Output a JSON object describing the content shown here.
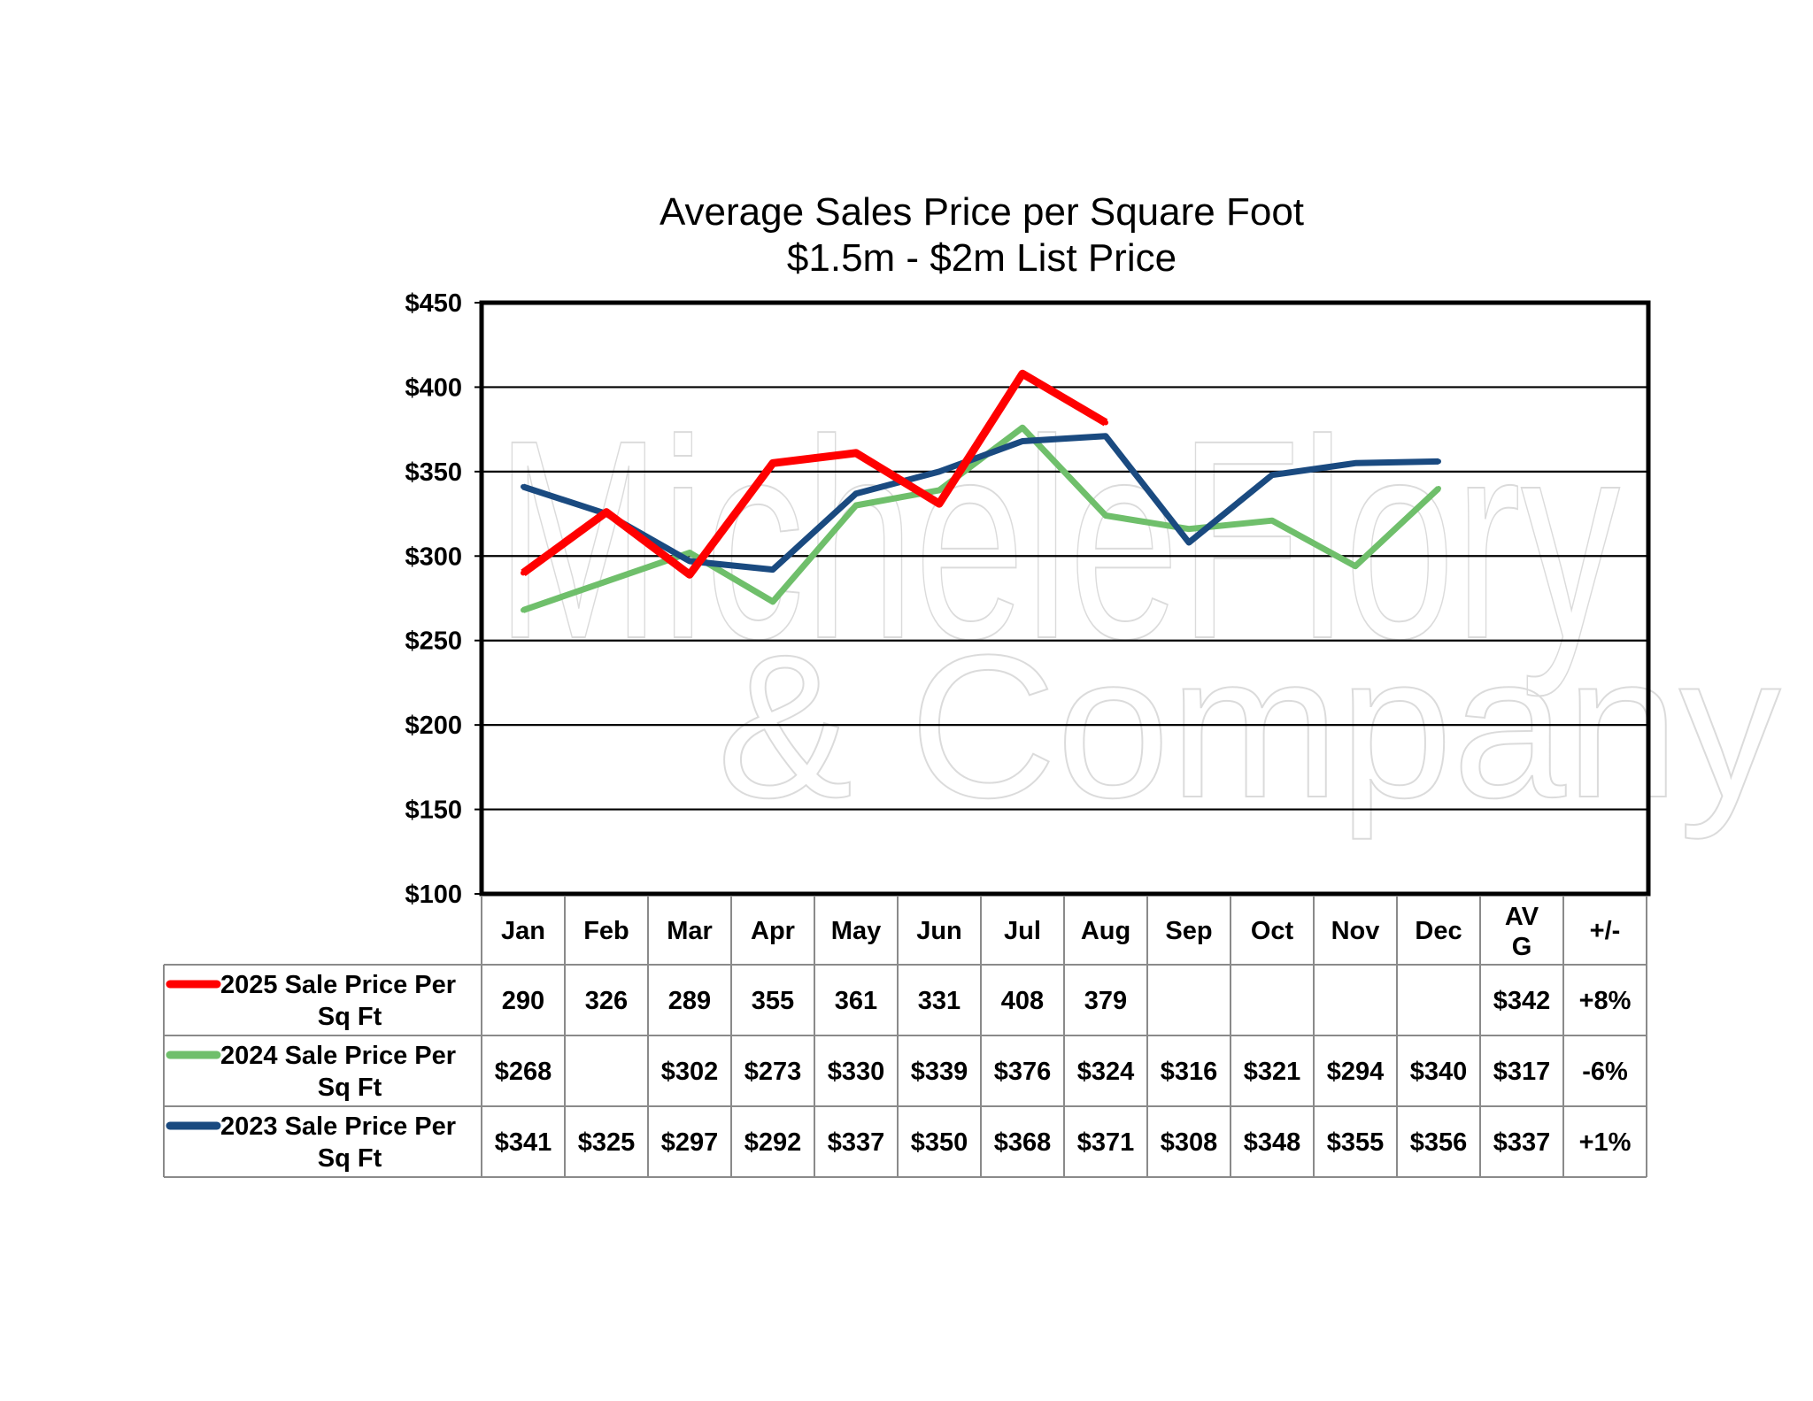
{
  "chart_data": {
    "type": "line",
    "title": "Average Sales Price per Square Foot",
    "subtitle": "$1.5m - $2m List Price",
    "categories": [
      "Jan",
      "Feb",
      "Mar",
      "Apr",
      "May",
      "Jun",
      "Jul",
      "Aug",
      "Sep",
      "Oct",
      "Nov",
      "Dec"
    ],
    "table_extra_headers": [
      "AV G",
      "+/-"
    ],
    "y_tick_labels": [
      "$450",
      "$400",
      "$350",
      "$300",
      "$250",
      "$200",
      "$150",
      "$100"
    ],
    "ylim": [
      100,
      450
    ],
    "grid": true,
    "legend": "data-table-left",
    "watermark": "Michele Flory & Company",
    "series": [
      {
        "name": "2025 Sale Price Per Sq Ft",
        "color": "#ff0000",
        "values": [
          290,
          326,
          289,
          355,
          361,
          331,
          408,
          379,
          null,
          null,
          null,
          null
        ],
        "table_cells": [
          "290",
          "326",
          "289",
          "355",
          "361",
          "331",
          "408",
          "379",
          "",
          "",
          "",
          ""
        ],
        "avg": "$342",
        "change": "+8%"
      },
      {
        "name": "2024 Sale Price Per Sq Ft",
        "color": "#6fbf6b",
        "values": [
          268,
          null,
          302,
          273,
          330,
          339,
          376,
          324,
          316,
          321,
          294,
          340
        ],
        "table_cells": [
          "$268",
          "",
          "$302",
          "$273",
          "$330",
          "$339",
          "$376",
          "$324",
          "$316",
          "$321",
          "$294",
          "$340"
        ],
        "avg": "$317",
        "change": "-6%"
      },
      {
        "name": "2023 Sale Price Per Sq Ft",
        "color": "#1a4a80",
        "values": [
          341,
          325,
          297,
          292,
          337,
          350,
          368,
          371,
          308,
          348,
          355,
          356
        ],
        "table_cells": [
          "$341",
          "$325",
          "$297",
          "$292",
          "$337",
          "$350",
          "$368",
          "$371",
          "$308",
          "$348",
          "$355",
          "$356"
        ],
        "avg": "$337",
        "change": "+1%"
      }
    ]
  }
}
